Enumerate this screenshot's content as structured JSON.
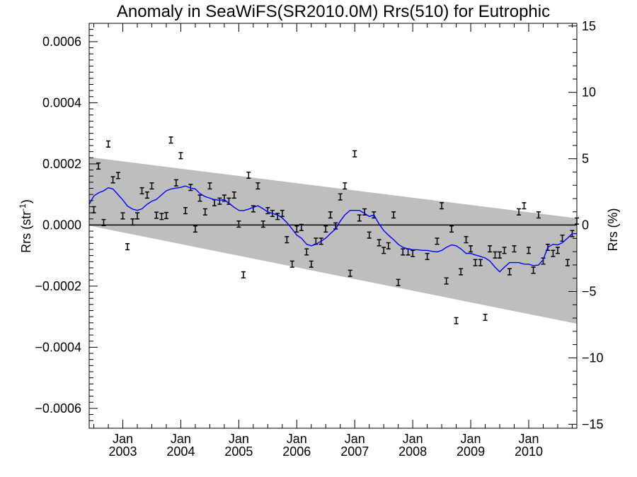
{
  "chart_data": {
    "type": "scatter",
    "title": "Anomaly in SeaWiFS(SR2010.0M) Rrs(510) for Eutrophic",
    "ylabel": {
      "base": "Rrs (str",
      "sup": "-1",
      "close": ")"
    },
    "y2label": "Rrs (%)",
    "x_tick_month": "Jan",
    "x_tick_years": [
      "2003",
      "2004",
      "2005",
      "2006",
      "2007",
      "2008",
      "2009",
      "2010"
    ],
    "y_ticks": [
      "0.0006",
      "0.0004",
      "0.0002",
      "0.0000",
      "−0.0002",
      "−0.0004",
      "−0.0006"
    ],
    "y_tick_values": [
      0.0006,
      0.0004,
      0.0002,
      0.0,
      -0.0002,
      -0.0004,
      -0.0006
    ],
    "y2_ticks": [
      "15",
      "10",
      "5",
      "0",
      "−5",
      "−10",
      "−15"
    ],
    "y2_tick_values": [
      15,
      10,
      5,
      0,
      -5,
      -10,
      -15
    ],
    "xlim": [
      2002.42,
      2010.83
    ],
    "ylim": [
      -0.000665,
      0.00066
    ],
    "y2lim": [
      -15.3,
      15.2
    ],
    "colors": {
      "envelope": "#bebebe",
      "running_mean": "#0000ff",
      "points": "#000000",
      "zero_line": "#000000"
    },
    "envelope": {
      "x": [
        2002.42,
        2010.83
      ],
      "upper": [
        0.000222,
        2.2e-05
      ],
      "lower": [
        -2e-06,
        -0.000323
      ]
    },
    "points": {
      "x": [
        2002.5,
        2002.58,
        2002.67,
        2002.75,
        2002.83,
        2002.92,
        2003.0,
        2003.08,
        2003.17,
        2003.25,
        2003.33,
        2003.42,
        2003.5,
        2003.58,
        2003.67,
        2003.75,
        2003.83,
        2003.92,
        2004.0,
        2004.08,
        2004.17,
        2004.25,
        2004.33,
        2004.42,
        2004.5,
        2004.58,
        2004.67,
        2004.75,
        2004.83,
        2004.92,
        2005.0,
        2005.08,
        2005.17,
        2005.25,
        2005.33,
        2005.42,
        2005.5,
        2005.58,
        2005.67,
        2005.75,
        2005.83,
        2005.92,
        2006.0,
        2006.08,
        2006.17,
        2006.25,
        2006.33,
        2006.42,
        2006.5,
        2006.58,
        2006.67,
        2006.75,
        2006.83,
        2006.92,
        2007.0,
        2007.08,
        2007.17,
        2007.25,
        2007.33,
        2007.42,
        2007.5,
        2007.58,
        2007.67,
        2007.75,
        2007.83,
        2007.92,
        2008.0,
        2008.25,
        2008.42,
        2008.5,
        2008.58,
        2008.67,
        2008.75,
        2008.83,
        2008.92,
        2009.0,
        2009.08,
        2009.17,
        2009.25,
        2009.33,
        2009.42,
        2009.5,
        2009.58,
        2009.67,
        2009.75,
        2009.83,
        2009.92,
        2010.0,
        2010.08,
        2010.17,
        2010.25,
        2010.33,
        2010.42,
        2010.5,
        2010.58,
        2010.67,
        2010.75,
        2010.83
      ],
      "y": [
        5e-05,
        0.000193,
        8e-06,
        0.000265,
        0.000148,
        0.000162,
        3e-05,
        -7.1e-05,
        1e-05,
        3e-05,
        0.000112,
        9.8e-05,
        0.000128,
        3.2e-05,
        2.8e-05,
        3.1e-05,
        0.000278,
        0.000138,
        0.000227,
        4.7e-05,
        0.000123,
        -1.3e-05,
        8.8e-05,
        4.3e-05,
        0.000128,
        7.3e-05,
        7.8e-05,
        8.8e-05,
        7.8e-05,
        9.8e-05,
        3e-06,
        -0.000163,
        0.000163,
        5.3e-05,
        0.000128,
        3e-06,
        4.7e-05,
        3.8e-05,
        2.8e-05,
        3.8e-05,
        -4.8e-05,
        -0.000128,
        -1.3e-05,
        -8e-06,
        -8.8e-05,
        -0.000128,
        -5.3e-05,
        -5.3e-05,
        -1.3e-05,
        3.3e-05,
        -3e-06,
        9.2e-05,
        0.000128,
        -0.000158,
        0.000233,
        2.3e-05,
        4.3e-05,
        -3.3e-05,
        3.3e-05,
        -5.8e-05,
        -8.3e-05,
        -6.8e-05,
        3.3e-05,
        -0.000188,
        -8.8e-05,
        -8.8e-05,
        -9.3e-05,
        -0.000103,
        -5.3e-05,
        6.3e-05,
        -0.000183,
        -1.3e-05,
        -0.000313,
        -0.000153,
        -4.8e-05,
        -7.8e-05,
        -0.000123,
        -0.000123,
        -0.000302,
        -7.8e-05,
        -9.8e-05,
        -9.8e-05,
        -8.3e-05,
        -0.000153,
        -7.8e-05,
        4.3e-05,
        6.3e-05,
        -8.3e-05,
        -0.000148,
        3.3e-05,
        -0.000118,
        -7.3e-05,
        -9.3e-05,
        -8.3e-05,
        -4.3e-05,
        -0.000123,
        -2.8e-05,
        1.3e-05
      ],
      "err": 1e-05
    },
    "running_mean": {
      "x": [
        2002.42,
        2002.5,
        2002.58,
        2002.67,
        2002.75,
        2002.83,
        2002.92,
        2003.0,
        2003.08,
        2003.17,
        2003.25,
        2003.33,
        2003.42,
        2003.5,
        2003.58,
        2003.67,
        2003.75,
        2003.83,
        2003.92,
        2004.0,
        2004.08,
        2004.17,
        2004.25,
        2004.33,
        2004.42,
        2004.5,
        2004.58,
        2004.67,
        2004.75,
        2004.83,
        2004.92,
        2005.0,
        2005.08,
        2005.17,
        2005.25,
        2005.33,
        2005.42,
        2005.5,
        2005.58,
        2005.67,
        2005.75,
        2005.83,
        2005.92,
        2006.0,
        2006.08,
        2006.17,
        2006.25,
        2006.33,
        2006.42,
        2006.5,
        2006.58,
        2006.67,
        2006.75,
        2006.83,
        2006.92,
        2007.0,
        2007.08,
        2007.17,
        2007.25,
        2007.33,
        2007.42,
        2007.5,
        2007.58,
        2007.67,
        2007.75,
        2007.83,
        2007.92,
        2008.0,
        2008.08,
        2008.17,
        2008.25,
        2008.33,
        2008.42,
        2008.5,
        2008.58,
        2008.67,
        2008.75,
        2008.83,
        2008.92,
        2009.0,
        2009.08,
        2009.17,
        2009.25,
        2009.33,
        2009.42,
        2009.5,
        2009.58,
        2009.67,
        2009.75,
        2009.83,
        2009.92,
        2010.0,
        2010.08,
        2010.17,
        2010.25,
        2010.33,
        2010.42,
        2010.5,
        2010.58,
        2010.67,
        2010.75,
        2010.83
      ],
      "y": [
        6.8e-05,
        9.5e-05,
        0.000105,
        0.000112,
        0.000122,
        0.000118,
        9.9e-05,
        8.2e-05,
        6.2e-05,
        5.2e-05,
        4.8e-05,
        5.3e-05,
        6.8e-05,
        7.8e-05,
        8.4e-05,
        9.9e-05,
        0.000112,
        0.000118,
        0.000121,
        0.000123,
        0.000128,
        0.000121,
        0.000118,
        0.000103,
        9.3e-05,
        8.8e-05,
        8.3e-05,
        8.1e-05,
        8.3e-05,
        7.1e-05,
        5.8e-05,
        4.8e-05,
        4.7e-05,
        5.2e-05,
        5.8e-05,
        6.3e-05,
        5.3e-05,
        4.3e-05,
        3.8e-05,
        3.3e-05,
        2.3e-05,
        8e-06,
        -1.3e-05,
        -3.3e-05,
        -4.3e-05,
        -6.3e-05,
        -6.8e-05,
        -6.3e-05,
        -5.3e-05,
        -4.3e-05,
        -2.8e-05,
        -1.3e-05,
        1.3e-05,
        3.3e-05,
        4.8e-05,
        4.8e-05,
        4.8e-05,
        3.8e-05,
        2.8e-05,
        3.3e-05,
        3e-06,
        -1.8e-05,
        -3.3e-05,
        -4.8e-05,
        -6.3e-05,
        -7.3e-05,
        -7.8e-05,
        -8.1e-05,
        -8.1e-05,
        -8.3e-05,
        -8.3e-05,
        -8.6e-05,
        -8.8e-05,
        -8.3e-05,
        -7.3e-05,
        -6.5e-05,
        -6.8e-05,
        -7.8e-05,
        -9.3e-05,
        -9.3e-05,
        -9.8e-05,
        -0.000103,
        -0.000108,
        -0.000118,
        -0.000138,
        -0.000153,
        -0.000138,
        -0.000123,
        -0.000123,
        -0.000123,
        -0.000128,
        -0.000128,
        -0.000133,
        -0.000131,
        -0.000113,
        -7.3e-05,
        -6.3e-05,
        -6.5e-05,
        -5.8e-05,
        -4.3e-05,
        -2.8e-05,
        -2.8e-05
      ]
    }
  }
}
